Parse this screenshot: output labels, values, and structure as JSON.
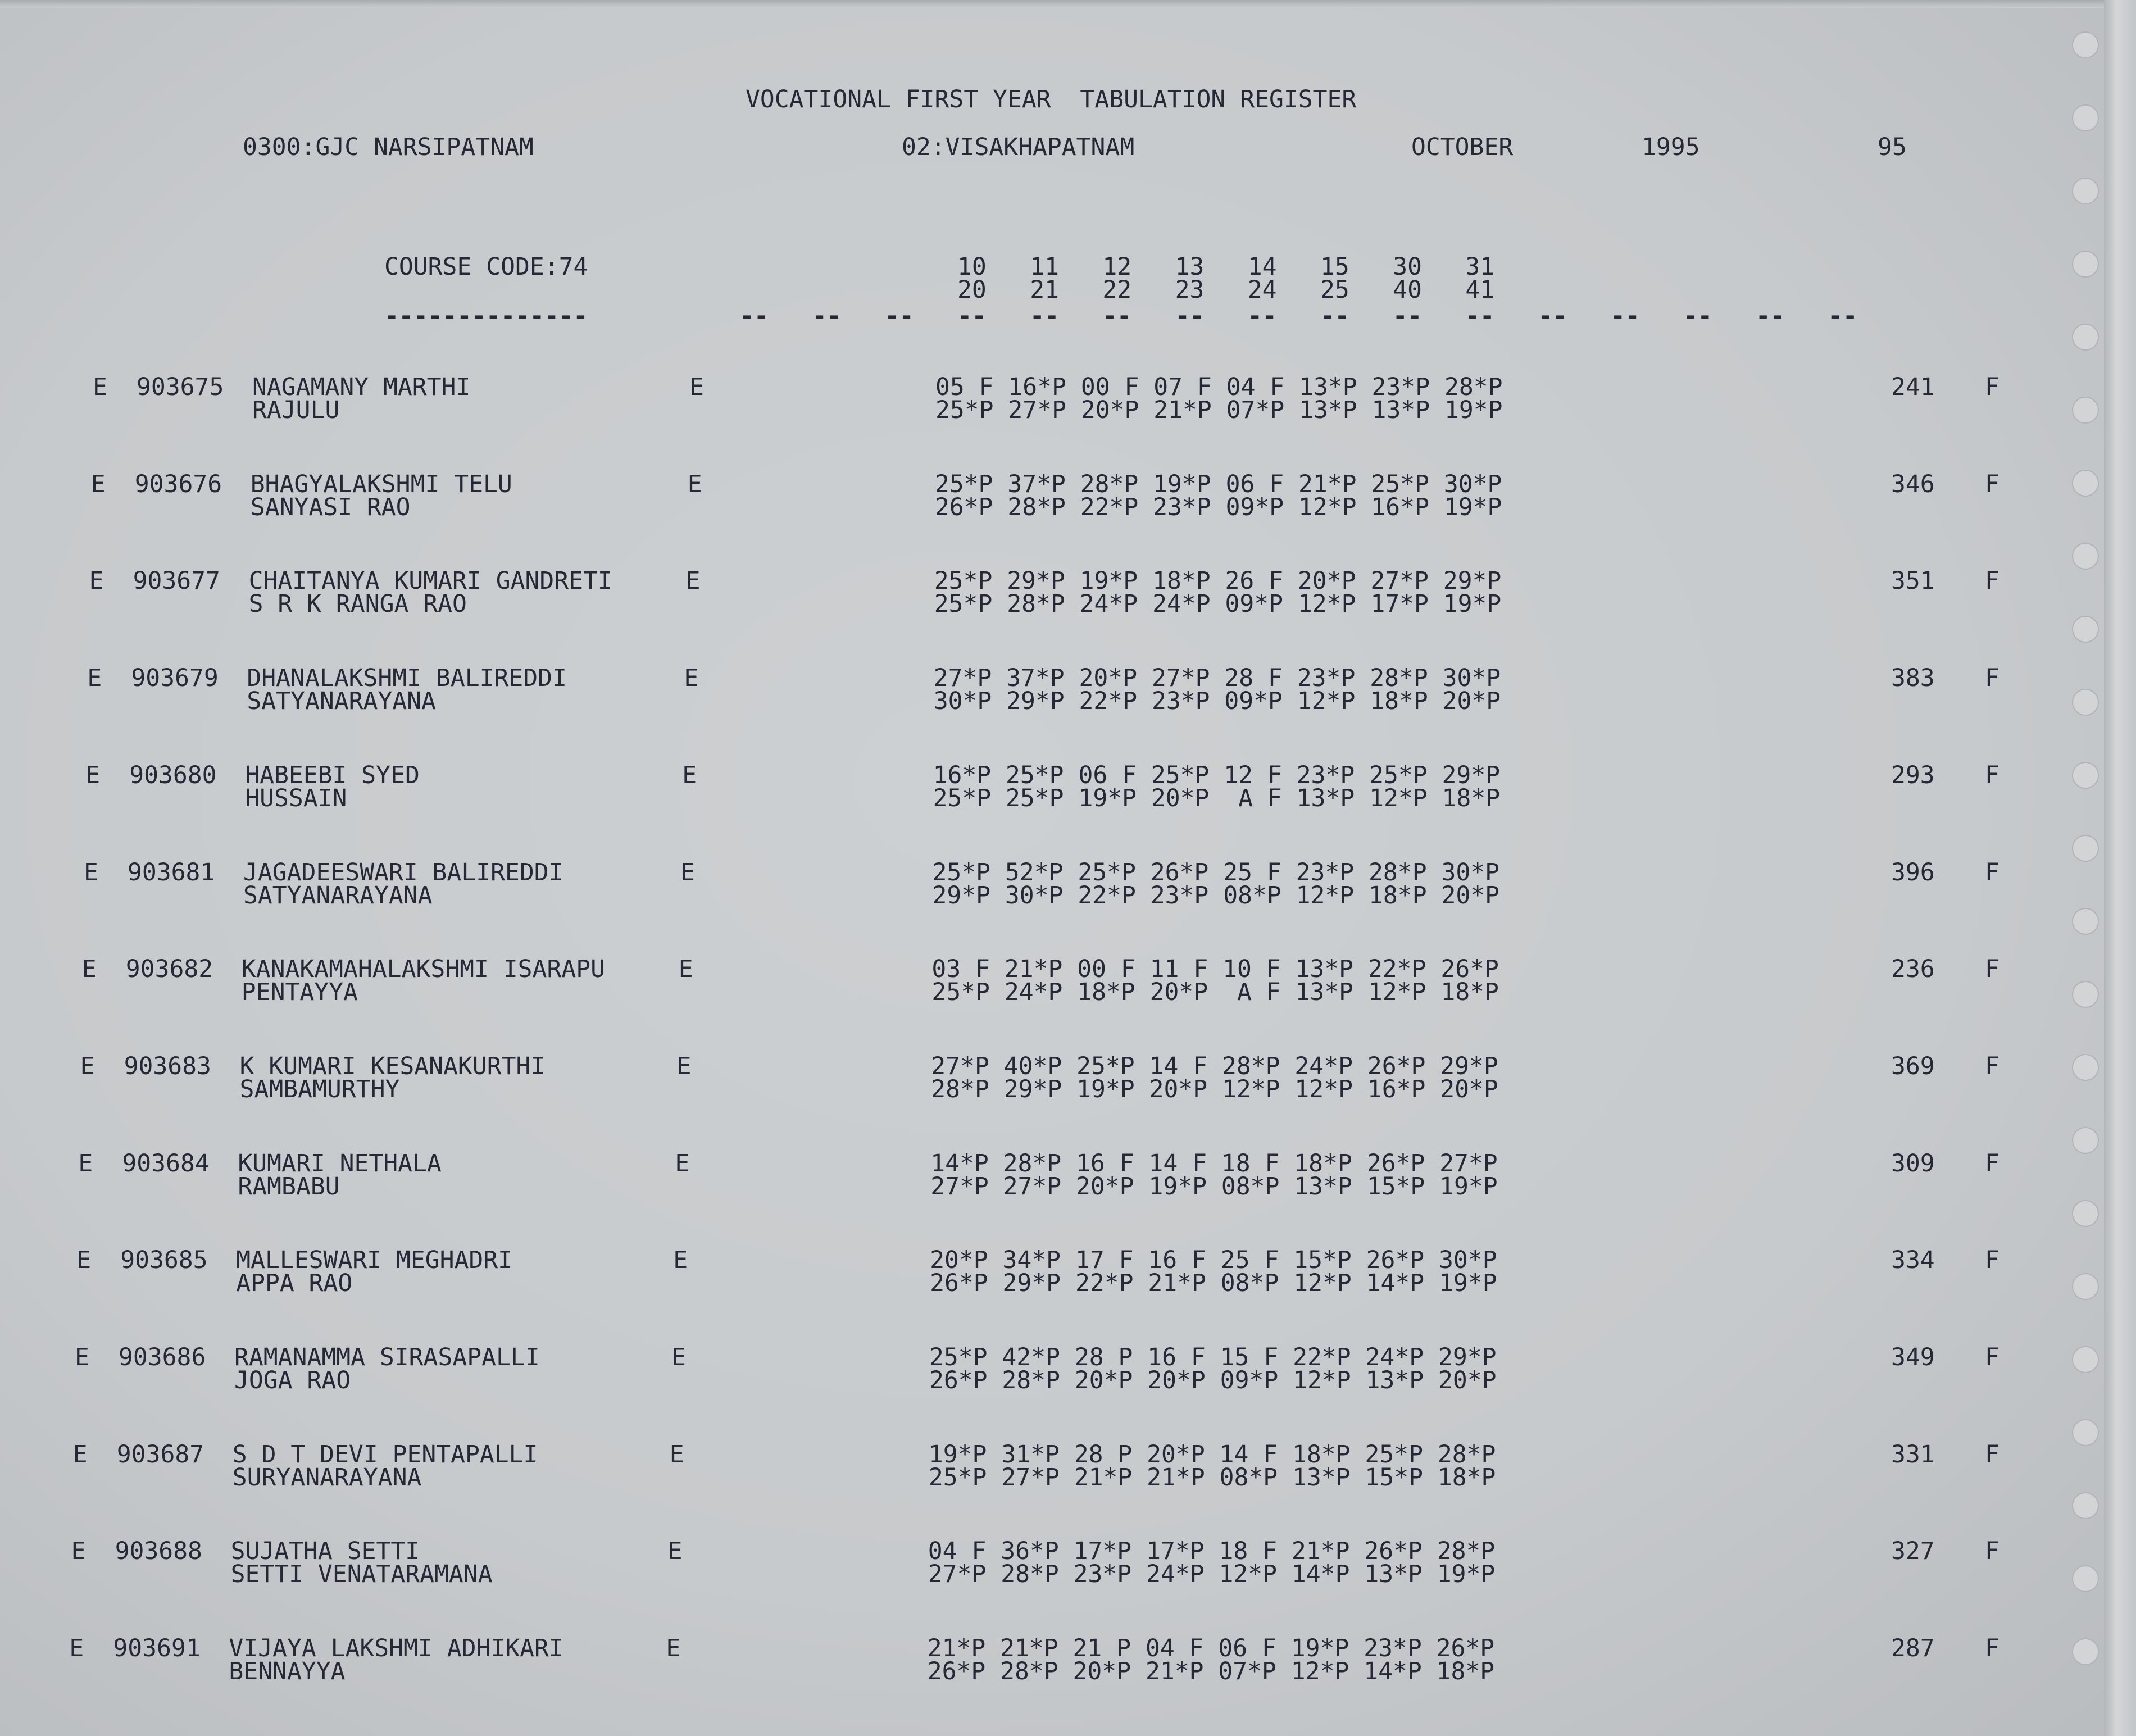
{
  "register": {
    "title": "VOCATIONAL FIRST YEAR  TABULATION REGISTER",
    "college": "0300:GJC NARSIPATNAM",
    "district": "02:VISAKHAPATNAM",
    "month": "OCTOBER",
    "year": "1995",
    "page": "95",
    "course_code": "COURSE CODE:74",
    "subject_codes_row1": [
      "10",
      "11",
      "12",
      "13",
      "14",
      "15",
      "30",
      "31"
    ],
    "subject_codes_row2": [
      "20",
      "21",
      "22",
      "23",
      "24",
      "25",
      "40",
      "41"
    ],
    "course_underline": "--------------",
    "column_dash": "--"
  },
  "students": [
    {
      "category": "E",
      "roll": "903675",
      "name": "NAGAMANY MARTHI",
      "parent": "RAJULU",
      "medium": "E",
      "marks1": [
        "05 F",
        "16*P",
        "00 F",
        "07 F",
        "04 F",
        "13*P",
        "23*P",
        "28*P"
      ],
      "marks2": [
        "25*P",
        "27*P",
        "20*P",
        "21*P",
        "07*P",
        "13*P",
        "13*P",
        "19*P"
      ],
      "total": "241",
      "result": "F"
    },
    {
      "category": "E",
      "roll": "903676",
      "name": "BHAGYALAKSHMI TELU",
      "parent": "SANYASI RAO",
      "medium": "E",
      "marks1": [
        "25*P",
        "37*P",
        "28*P",
        "19*P",
        "06 F",
        "21*P",
        "25*P",
        "30*P"
      ],
      "marks2": [
        "26*P",
        "28*P",
        "22*P",
        "23*P",
        "09*P",
        "12*P",
        "16*P",
        "19*P"
      ],
      "total": "346",
      "result": "F"
    },
    {
      "category": "E",
      "roll": "903677",
      "name": "CHAITANYA KUMARI GANDRETI",
      "parent": "S R K RANGA RAO",
      "medium": "E",
      "marks1": [
        "25*P",
        "29*P",
        "19*P",
        "18*P",
        "26 F",
        "20*P",
        "27*P",
        "29*P"
      ],
      "marks2": [
        "25*P",
        "28*P",
        "24*P",
        "24*P",
        "09*P",
        "12*P",
        "17*P",
        "19*P"
      ],
      "total": "351",
      "result": "F"
    },
    {
      "category": "E",
      "roll": "903679",
      "name": "DHANALAKSHMI BALIREDDI",
      "parent": "SATYANARAYANA",
      "medium": "E",
      "marks1": [
        "27*P",
        "37*P",
        "20*P",
        "27*P",
        "28 F",
        "23*P",
        "28*P",
        "30*P"
      ],
      "marks2": [
        "30*P",
        "29*P",
        "22*P",
        "23*P",
        "09*P",
        "12*P",
        "18*P",
        "20*P"
      ],
      "total": "383",
      "result": "F"
    },
    {
      "category": "E",
      "roll": "903680",
      "name": "HABEEBI SYED",
      "parent": "HUSSAIN",
      "medium": "E",
      "marks1": [
        "16*P",
        "25*P",
        "06 F",
        "25*P",
        "12 F",
        "23*P",
        "25*P",
        "29*P"
      ],
      "marks2": [
        "25*P",
        "25*P",
        "19*P",
        "20*P",
        "A F",
        "13*P",
        "12*P",
        "18*P"
      ],
      "total": "293",
      "result": "F"
    },
    {
      "category": "E",
      "roll": "903681",
      "name": "JAGADEESWARI BALIREDDI",
      "parent": "SATYANARAYANA",
      "medium": "E",
      "marks1": [
        "25*P",
        "52*P",
        "25*P",
        "26*P",
        "25 F",
        "23*P",
        "28*P",
        "30*P"
      ],
      "marks2": [
        "29*P",
        "30*P",
        "22*P",
        "23*P",
        "08*P",
        "12*P",
        "18*P",
        "20*P"
      ],
      "total": "396",
      "result": "F"
    },
    {
      "category": "E",
      "roll": "903682",
      "name": "KANAKAMAHALAKSHMI ISARAPU",
      "parent": "PENTAYYA",
      "medium": "E",
      "marks1": [
        "03 F",
        "21*P",
        "00 F",
        "11 F",
        "10 F",
        "13*P",
        "22*P",
        "26*P"
      ],
      "marks2": [
        "25*P",
        "24*P",
        "18*P",
        "20*P",
        "A F",
        "13*P",
        "12*P",
        "18*P"
      ],
      "total": "236",
      "result": "F"
    },
    {
      "category": "E",
      "roll": "903683",
      "name": "K KUMARI KESANAKURTHI",
      "parent": "SAMBAMURTHY",
      "medium": "E",
      "marks1": [
        "27*P",
        "40*P",
        "25*P",
        "14 F",
        "28*P",
        "24*P",
        "26*P",
        "29*P"
      ],
      "marks2": [
        "28*P",
        "29*P",
        "19*P",
        "20*P",
        "12*P",
        "12*P",
        "16*P",
        "20*P"
      ],
      "total": "369",
      "result": "F"
    },
    {
      "category": "E",
      "roll": "903684",
      "name": "KUMARI NETHALA",
      "parent": "RAMBABU",
      "medium": "E",
      "marks1": [
        "14*P",
        "28*P",
        "16 F",
        "14 F",
        "18 F",
        "18*P",
        "26*P",
        "27*P"
      ],
      "marks2": [
        "27*P",
        "27*P",
        "20*P",
        "19*P",
        "08*P",
        "13*P",
        "15*P",
        "19*P"
      ],
      "total": "309",
      "result": "F"
    },
    {
      "category": "E",
      "roll": "903685",
      "name": "MALLESWARI MEGHADRI",
      "parent": "APPA RAO",
      "medium": "E",
      "marks1": [
        "20*P",
        "34*P",
        "17 F",
        "16 F",
        "25 F",
        "15*P",
        "26*P",
        "30*P"
      ],
      "marks2": [
        "26*P",
        "29*P",
        "22*P",
        "21*P",
        "08*P",
        "12*P",
        "14*P",
        "19*P"
      ],
      "total": "334",
      "result": "F"
    },
    {
      "category": "E",
      "roll": "903686",
      "name": "RAMANAMMA SIRASAPALLI",
      "parent": "JOGA RAO",
      "medium": "E",
      "marks1": [
        "25*P",
        "42*P",
        "28 P",
        "16 F",
        "15 F",
        "22*P",
        "24*P",
        "29*P"
      ],
      "marks2": [
        "26*P",
        "28*P",
        "20*P",
        "20*P",
        "09*P",
        "12*P",
        "13*P",
        "20*P"
      ],
      "total": "349",
      "result": "F"
    },
    {
      "category": "E",
      "roll": "903687",
      "name": "S D T DEVI PENTAPALLI",
      "parent": "SURYANARAYANA",
      "medium": "E",
      "marks1": [
        "19*P",
        "31*P",
        "28 P",
        "20*P",
        "14 F",
        "18*P",
        "25*P",
        "28*P"
      ],
      "marks2": [
        "25*P",
        "27*P",
        "21*P",
        "21*P",
        "08*P",
        "13*P",
        "15*P",
        "18*P"
      ],
      "total": "331",
      "result": "F"
    },
    {
      "category": "E",
      "roll": "903688",
      "name": "SUJATHA SETTI",
      "parent": "SETTI VENATARAMANA",
      "medium": "E",
      "marks1": [
        "04 F",
        "36*P",
        "17*P",
        "17*P",
        "18 F",
        "21*P",
        "26*P",
        "28*P"
      ],
      "marks2": [
        "27*P",
        "28*P",
        "23*P",
        "24*P",
        "12*P",
        "14*P",
        "13*P",
        "19*P"
      ],
      "total": "327",
      "result": "F"
    },
    {
      "category": "E",
      "roll": "903691",
      "name": "VIJAYA LAKSHMI ADHIKARI",
      "parent": "BENNAYYA",
      "medium": "E",
      "marks1": [
        "21*P",
        "21*P",
        "21 P",
        "04 F",
        "06 F",
        "19*P",
        "23*P",
        "26*P"
      ],
      "marks2": [
        "26*P",
        "28*P",
        "20*P",
        "21*P",
        "07*P",
        "12*P",
        "14*P",
        "18*P"
      ],
      "total": "287",
      "result": "F"
    }
  ],
  "colors": {
    "paper": "#c9cccf",
    "ink": "#262836"
  }
}
